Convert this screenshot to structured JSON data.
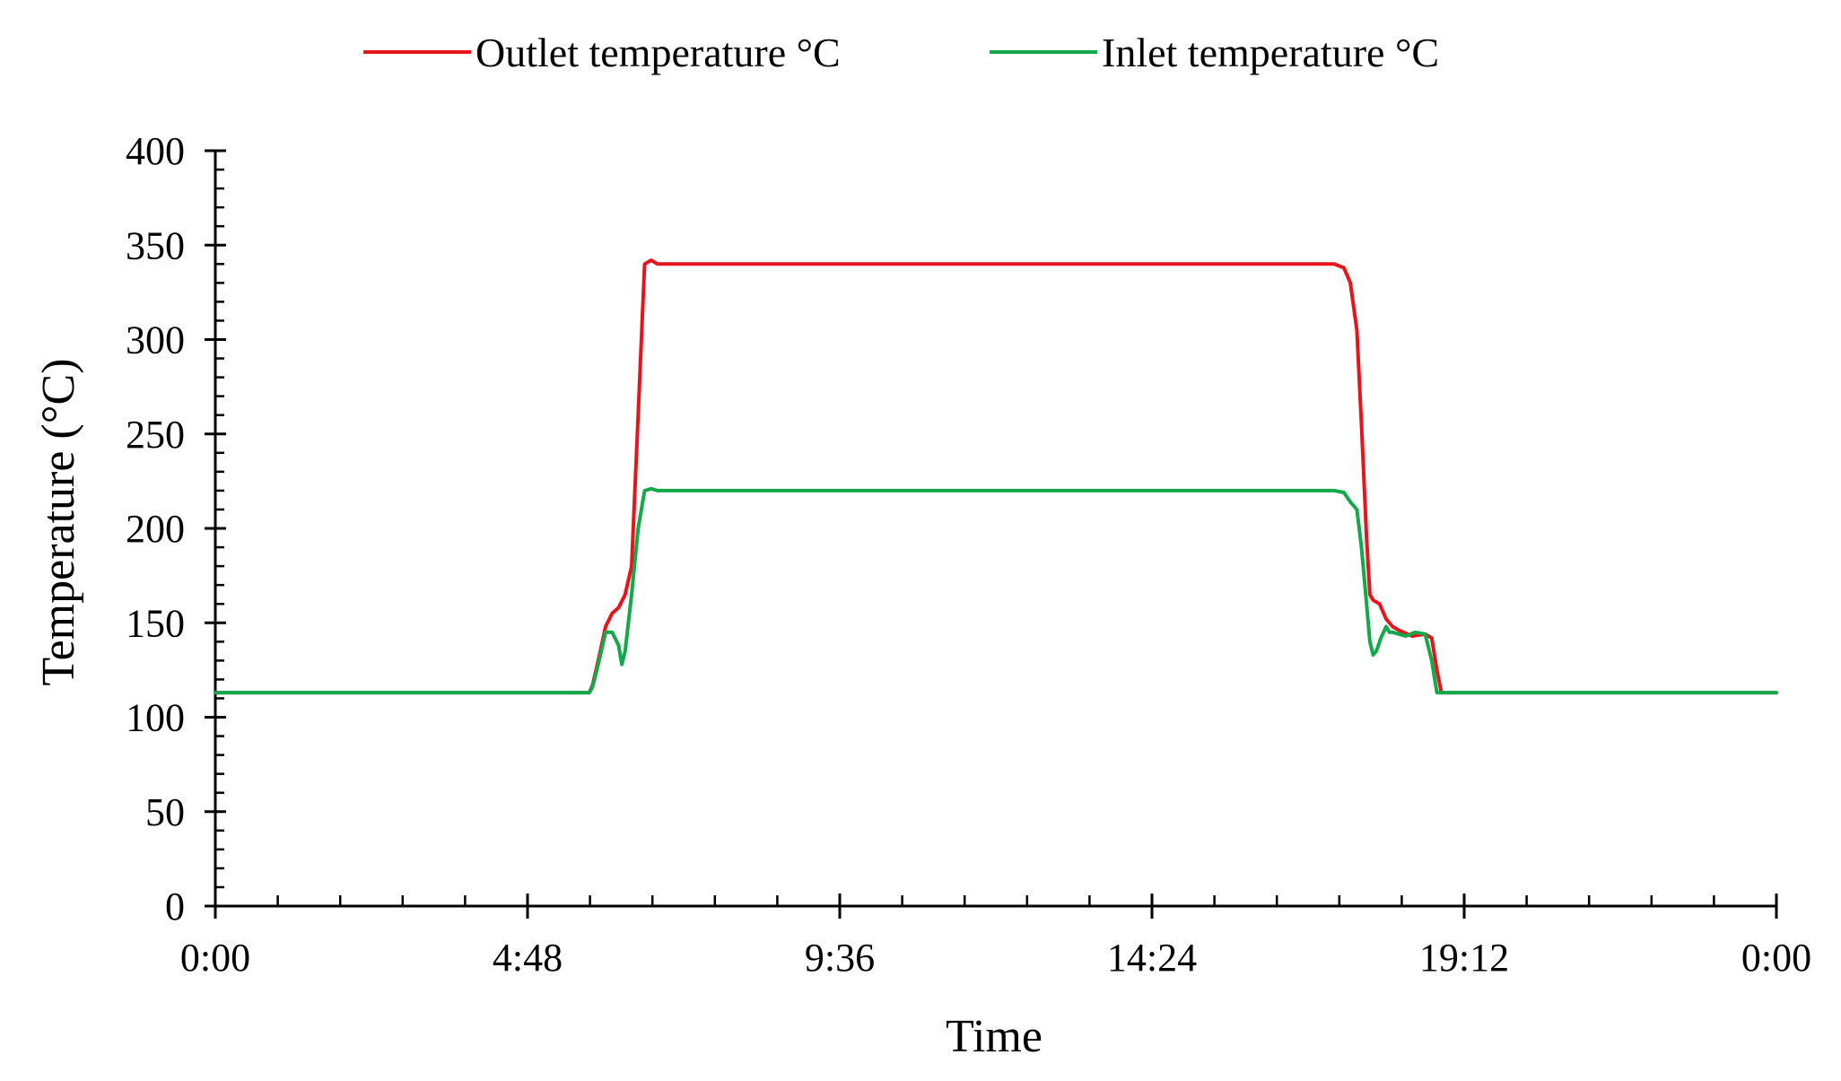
{
  "chart_data": {
    "type": "line",
    "xlabel": "Time",
    "ylabel": "Temperature (°C)",
    "xlim": [
      0,
      24
    ],
    "ylim": [
      0,
      400
    ],
    "x_unit": "hours",
    "x_ticks": [
      0,
      4.8,
      9.6,
      14.4,
      19.2,
      24
    ],
    "x_tick_labels": [
      "0:00",
      "4:48",
      "9:36",
      "14:24",
      "19:12",
      "0:00"
    ],
    "y_ticks": [
      0,
      50,
      100,
      150,
      200,
      250,
      300,
      350,
      400
    ],
    "y_tick_labels": [
      "0",
      "50",
      "100",
      "150",
      "200",
      "250",
      "300",
      "350",
      "400"
    ],
    "y_minor_step": 10,
    "x_minor_step": 0.96,
    "grid": false,
    "legend_position": "top",
    "series": [
      {
        "name": "Outlet temperature °C",
        "color": "#e8141b",
        "x": [
          0,
          5.75,
          5.8,
          5.9,
          6.0,
          6.1,
          6.2,
          6.3,
          6.4,
          6.5,
          6.6,
          6.7,
          6.8,
          7.0,
          17.2,
          17.35,
          17.45,
          17.55,
          17.62,
          17.7,
          17.75,
          17.8,
          17.9,
          18.0,
          18.1,
          18.2,
          18.4,
          18.6,
          18.7,
          18.78,
          18.85,
          19.0,
          24
        ],
        "values": [
          113,
          113,
          117,
          132,
          148,
          155,
          158,
          165,
          180,
          260,
          340,
          342,
          340,
          340,
          340,
          338,
          330,
          305,
          255,
          195,
          165,
          162,
          160,
          152,
          148,
          146,
          143,
          144,
          142,
          125,
          113,
          113,
          113
        ]
      },
      {
        "name": "Inlet temperature °C",
        "color": "#13a84a",
        "x": [
          0,
          5.75,
          5.8,
          5.9,
          6.0,
          6.1,
          6.2,
          6.25,
          6.3,
          6.4,
          6.5,
          6.6,
          6.7,
          6.8,
          7.0,
          17.2,
          17.35,
          17.45,
          17.55,
          17.62,
          17.7,
          17.75,
          17.8,
          17.85,
          17.92,
          18.0,
          18.05,
          18.1,
          18.2,
          18.3,
          18.45,
          18.6,
          18.7,
          18.78,
          18.85,
          19.0,
          24
        ],
        "values": [
          113,
          113,
          116,
          130,
          145,
          145,
          138,
          128,
          135,
          165,
          200,
          220,
          221,
          220,
          220,
          220,
          219,
          214,
          210,
          190,
          160,
          140,
          133,
          135,
          142,
          148,
          145,
          145,
          144,
          143,
          145,
          144,
          130,
          113,
          113,
          113,
          113
        ]
      }
    ]
  }
}
